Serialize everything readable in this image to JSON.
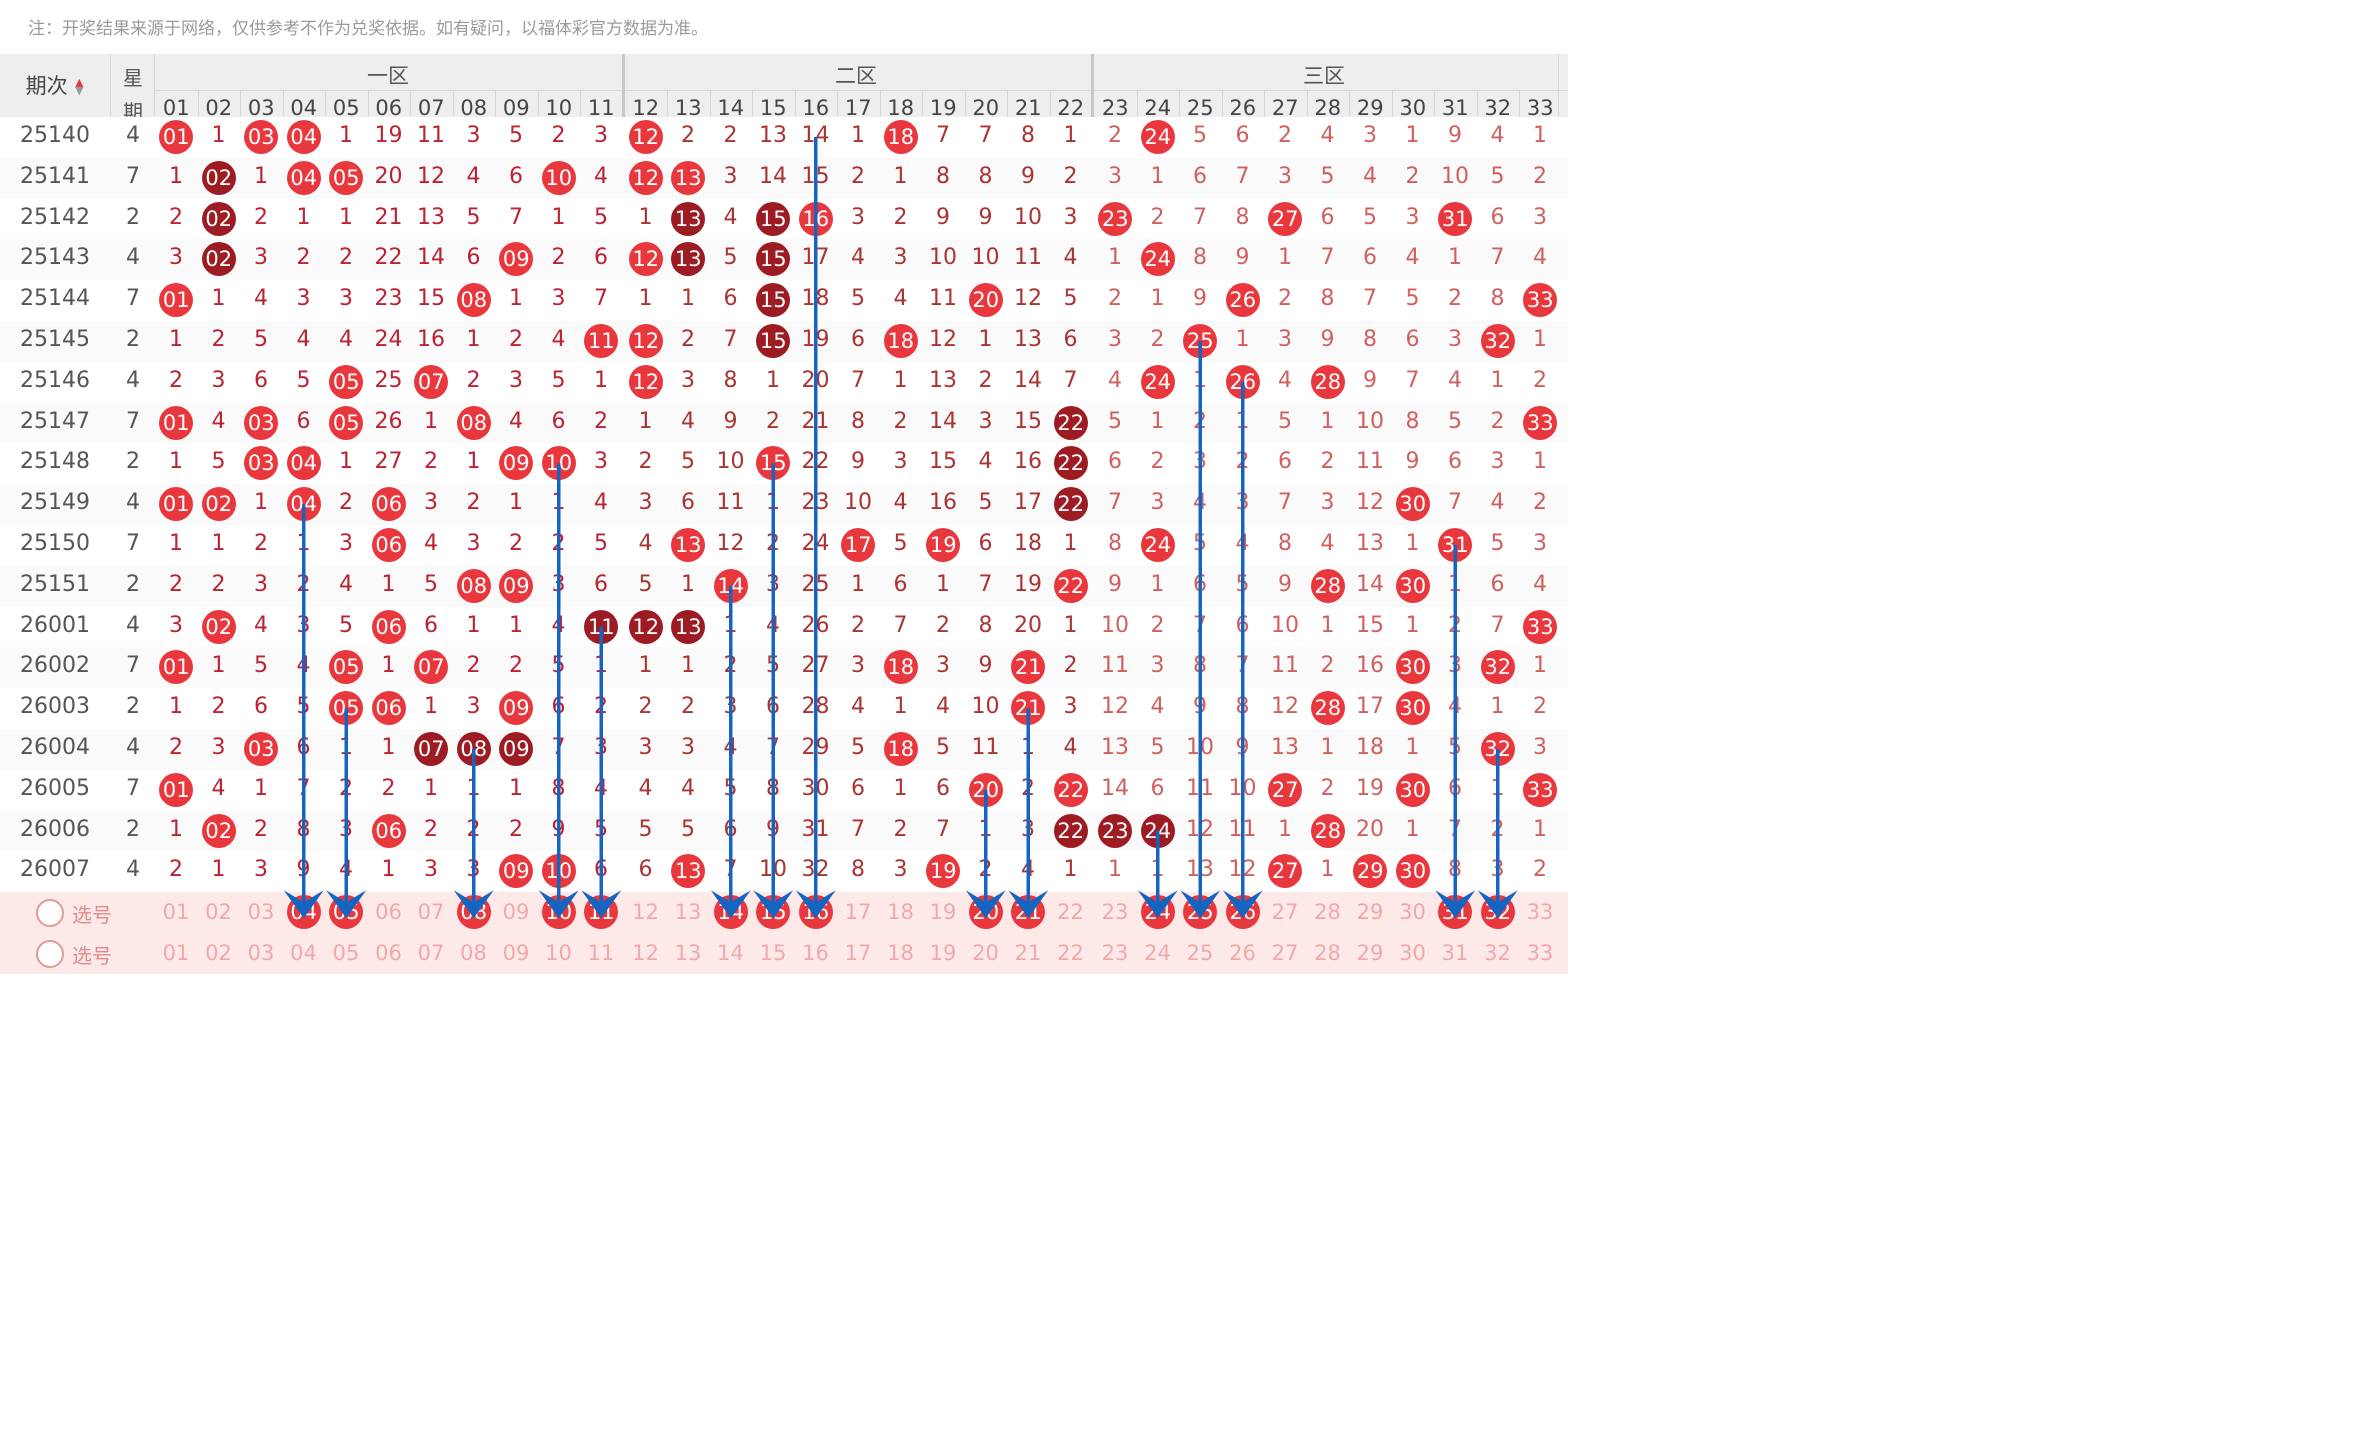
{
  "note": "注：开奖结果来源于网络，仅供参考不作为兑奖依据。如有疑问，以福体彩官方数据为准。",
  "header": {
    "issue_label": "期次",
    "sort_icon": "sort-up-down-icon",
    "week_label_1": "星",
    "week_label_2": "期",
    "zones": [
      "一区",
      "二区",
      "三区"
    ]
  },
  "columns": [
    "01",
    "02",
    "03",
    "04",
    "05",
    "06",
    "07",
    "08",
    "09",
    "10",
    "11",
    "12",
    "13",
    "14",
    "15",
    "16",
    "17",
    "18",
    "19",
    "20",
    "21",
    "22",
    "23",
    "24",
    "25",
    "26",
    "27",
    "28",
    "29",
    "30",
    "31",
    "32",
    "33"
  ],
  "rows": [
    {
      "issue": "25140",
      "week": "4",
      "cells": [
        "01",
        "1",
        "03",
        "04",
        "1",
        "19",
        "11",
        "3",
        "5",
        "2",
        "3",
        "12",
        "2",
        "2",
        "13",
        "14",
        "1",
        "18",
        "7",
        "7",
        "8",
        "1",
        "2",
        "24",
        "5",
        "6",
        "2",
        "4",
        "3",
        "1",
        "9",
        "4",
        "1"
      ]
    },
    {
      "issue": "25141",
      "week": "7",
      "cells": [
        "1",
        "02",
        "1",
        "04",
        "05",
        "20",
        "12",
        "4",
        "6",
        "10",
        "4",
        "12",
        "13",
        "3",
        "14",
        "15",
        "2",
        "1",
        "8",
        "8",
        "9",
        "2",
        "3",
        "1",
        "6",
        "7",
        "3",
        "5",
        "4",
        "2",
        "10",
        "5",
        "2"
      ]
    },
    {
      "issue": "25142",
      "week": "2",
      "cells": [
        "2",
        "02",
        "2",
        "1",
        "1",
        "21",
        "13",
        "5",
        "7",
        "1",
        "5",
        "1",
        "13",
        "4",
        "15",
        "16",
        "3",
        "2",
        "9",
        "9",
        "10",
        "3",
        "23",
        "2",
        "7",
        "8",
        "27",
        "6",
        "5",
        "3",
        "31",
        "6",
        "3"
      ]
    },
    {
      "issue": "25143",
      "week": "4",
      "cells": [
        "3",
        "02",
        "3",
        "2",
        "2",
        "22",
        "14",
        "6",
        "09",
        "2",
        "6",
        "12",
        "13",
        "5",
        "15",
        "17",
        "4",
        "3",
        "10",
        "10",
        "11",
        "4",
        "1",
        "24",
        "8",
        "9",
        "1",
        "7",
        "6",
        "4",
        "1",
        "7",
        "4"
      ]
    },
    {
      "issue": "25144",
      "week": "7",
      "cells": [
        "01",
        "1",
        "4",
        "3",
        "3",
        "23",
        "15",
        "08",
        "1",
        "3",
        "7",
        "1",
        "1",
        "6",
        "15",
        "18",
        "5",
        "4",
        "11",
        "20",
        "12",
        "5",
        "2",
        "1",
        "9",
        "26",
        "2",
        "8",
        "7",
        "5",
        "2",
        "8",
        "33"
      ]
    },
    {
      "issue": "25145",
      "week": "2",
      "cells": [
        "1",
        "2",
        "5",
        "4",
        "4",
        "24",
        "16",
        "1",
        "2",
        "4",
        "11",
        "12",
        "2",
        "7",
        "15",
        "19",
        "6",
        "18",
        "12",
        "1",
        "13",
        "6",
        "3",
        "2",
        "25",
        "1",
        "3",
        "9",
        "8",
        "6",
        "3",
        "32",
        "1"
      ]
    },
    {
      "issue": "25146",
      "week": "4",
      "cells": [
        "2",
        "3",
        "6",
        "5",
        "05",
        "25",
        "07",
        "2",
        "3",
        "5",
        "1",
        "12",
        "3",
        "8",
        "1",
        "20",
        "7",
        "1",
        "13",
        "2",
        "14",
        "7",
        "4",
        "24",
        "1",
        "26",
        "4",
        "28",
        "9",
        "7",
        "4",
        "1",
        "2"
      ]
    },
    {
      "issue": "25147",
      "week": "7",
      "cells": [
        "01",
        "4",
        "03",
        "6",
        "05",
        "26",
        "1",
        "08",
        "4",
        "6",
        "2",
        "1",
        "4",
        "9",
        "2",
        "21",
        "8",
        "2",
        "14",
        "3",
        "15",
        "22",
        "5",
        "1",
        "2",
        "1",
        "5",
        "1",
        "10",
        "8",
        "5",
        "2",
        "33"
      ]
    },
    {
      "issue": "25148",
      "week": "2",
      "cells": [
        "1",
        "5",
        "03",
        "04",
        "1",
        "27",
        "2",
        "1",
        "09",
        "10",
        "3",
        "2",
        "5",
        "10",
        "15",
        "22",
        "9",
        "3",
        "15",
        "4",
        "16",
        "22",
        "6",
        "2",
        "3",
        "2",
        "6",
        "2",
        "11",
        "9",
        "6",
        "3",
        "1"
      ]
    },
    {
      "issue": "25149",
      "week": "4",
      "cells": [
        "01",
        "02",
        "1",
        "04",
        "2",
        "06",
        "3",
        "2",
        "1",
        "1",
        "4",
        "3",
        "6",
        "11",
        "1",
        "23",
        "10",
        "4",
        "16",
        "5",
        "17",
        "22",
        "7",
        "3",
        "4",
        "3",
        "7",
        "3",
        "12",
        "30",
        "7",
        "4",
        "2"
      ]
    },
    {
      "issue": "25150",
      "week": "7",
      "cells": [
        "1",
        "1",
        "2",
        "1",
        "3",
        "06",
        "4",
        "3",
        "2",
        "2",
        "5",
        "4",
        "13",
        "12",
        "2",
        "24",
        "17",
        "5",
        "19",
        "6",
        "18",
        "1",
        "8",
        "24",
        "5",
        "4",
        "8",
        "4",
        "13",
        "1",
        "31",
        "5",
        "3"
      ]
    },
    {
      "issue": "25151",
      "week": "2",
      "cells": [
        "2",
        "2",
        "3",
        "2",
        "4",
        "1",
        "5",
        "08",
        "09",
        "3",
        "6",
        "5",
        "1",
        "14",
        "3",
        "25",
        "1",
        "6",
        "1",
        "7",
        "19",
        "22",
        "9",
        "1",
        "6",
        "5",
        "9",
        "28",
        "14",
        "30",
        "1",
        "6",
        "4"
      ]
    },
    {
      "issue": "26001",
      "week": "4",
      "cells": [
        "3",
        "02",
        "4",
        "3",
        "5",
        "06",
        "6",
        "1",
        "1",
        "4",
        "11",
        "12",
        "13",
        "1",
        "4",
        "26",
        "2",
        "7",
        "2",
        "8",
        "20",
        "1",
        "10",
        "2",
        "7",
        "6",
        "10",
        "1",
        "15",
        "1",
        "2",
        "7",
        "33"
      ]
    },
    {
      "issue": "26002",
      "week": "7",
      "cells": [
        "01",
        "1",
        "5",
        "4",
        "05",
        "1",
        "07",
        "2",
        "2",
        "5",
        "1",
        "1",
        "1",
        "2",
        "5",
        "27",
        "3",
        "18",
        "3",
        "9",
        "21",
        "2",
        "11",
        "3",
        "8",
        "7",
        "11",
        "2",
        "16",
        "30",
        "3",
        "32",
        "1"
      ]
    },
    {
      "issue": "26003",
      "week": "2",
      "cells": [
        "1",
        "2",
        "6",
        "5",
        "05",
        "06",
        "1",
        "3",
        "09",
        "6",
        "2",
        "2",
        "2",
        "3",
        "6",
        "28",
        "4",
        "1",
        "4",
        "10",
        "21",
        "3",
        "12",
        "4",
        "9",
        "8",
        "12",
        "28",
        "17",
        "30",
        "4",
        "1",
        "2"
      ]
    },
    {
      "issue": "26004",
      "week": "4",
      "cells": [
        "2",
        "3",
        "03",
        "6",
        "1",
        "1",
        "07",
        "08",
        "09",
        "7",
        "3",
        "3",
        "3",
        "4",
        "7",
        "29",
        "5",
        "18",
        "5",
        "11",
        "1",
        "4",
        "13",
        "5",
        "10",
        "9",
        "13",
        "1",
        "18",
        "1",
        "5",
        "32",
        "3"
      ]
    },
    {
      "issue": "26005",
      "week": "7",
      "cells": [
        "01",
        "4",
        "1",
        "7",
        "2",
        "2",
        "1",
        "1",
        "1",
        "8",
        "4",
        "4",
        "4",
        "5",
        "8",
        "30",
        "6",
        "1",
        "6",
        "20",
        "2",
        "22",
        "14",
        "6",
        "11",
        "10",
        "27",
        "2",
        "19",
        "30",
        "6",
        "1",
        "33"
      ]
    },
    {
      "issue": "26006",
      "week": "2",
      "cells": [
        "1",
        "02",
        "2",
        "8",
        "3",
        "06",
        "2",
        "2",
        "2",
        "9",
        "5",
        "5",
        "5",
        "6",
        "9",
        "31",
        "7",
        "2",
        "7",
        "1",
        "3",
        "22",
        "23",
        "24",
        "12",
        "11",
        "1",
        "28",
        "20",
        "1",
        "7",
        "2",
        "1"
      ]
    },
    {
      "issue": "26007",
      "week": "4",
      "cells": [
        "2",
        "1",
        "3",
        "9",
        "4",
        "1",
        "3",
        "3",
        "09",
        "10",
        "6",
        "6",
        "13",
        "7",
        "10",
        "32",
        "8",
        "3",
        "19",
        "2",
        "4",
        "1",
        "1",
        "1",
        "13",
        "12",
        "27",
        "1",
        "29",
        "30",
        "8",
        "3",
        "2"
      ]
    }
  ],
  "select_rows": [
    {
      "label": "选号",
      "highlight": [
        "04",
        "05",
        "08",
        "10",
        "11",
        "14",
        "15",
        "16",
        "20",
        "21",
        "24",
        "25",
        "26",
        "31",
        "32"
      ]
    },
    {
      "label": "选号",
      "highlight": []
    }
  ],
  "dark_balls": {
    "25141": [
      "02"
    ],
    "25142": [
      "02",
      "13",
      "15"
    ],
    "25143": [
      "02",
      "13",
      "15"
    ],
    "25144": [
      "15"
    ],
    "25145": [
      "15"
    ],
    "25147": [
      "22"
    ],
    "25148": [
      "22"
    ],
    "25149": [
      "22"
    ],
    "26001": [
      "11",
      "12",
      "13"
    ],
    "26004": [
      "07",
      "08",
      "09"
    ],
    "26006": [
      "22",
      "23",
      "24"
    ]
  },
  "colors": {
    "red_ball": "#e8383d",
    "dark_ball": "#9d1c24",
    "arrow": "#1565c0",
    "missing_text": "#666666"
  }
}
